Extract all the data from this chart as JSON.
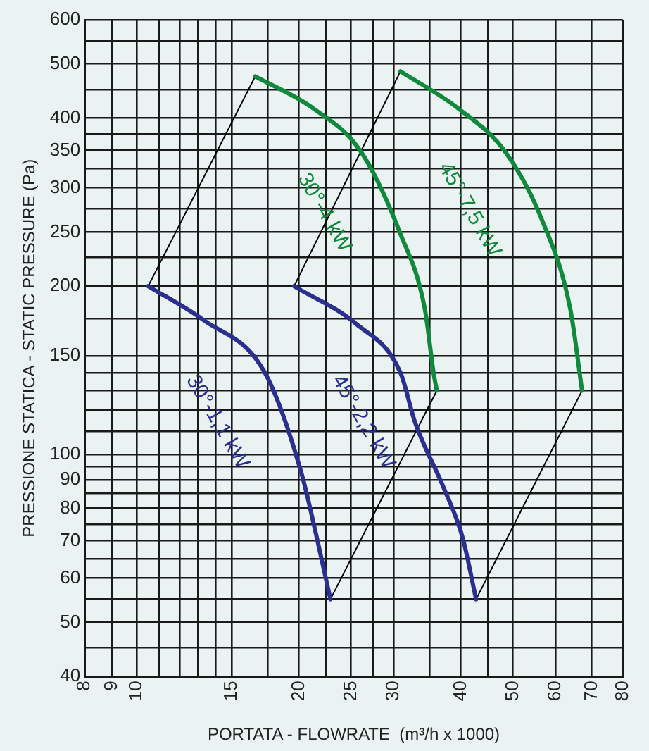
{
  "chart_data": {
    "type": "line",
    "xlabel": "PORTATA - FLOWRATE  (m³/h x 1000)",
    "ylabel": "PRESSIONE STATICA - STATIC PRESSURE (Pa)",
    "log": "xy",
    "grid": true,
    "legend": false,
    "marker": "none",
    "line_style": "solid",
    "xlim": [
      8,
      80
    ],
    "ylim": [
      40,
      600
    ],
    "xticks": [
      8,
      9,
      10,
      {
        "value": 11,
        "label": null
      },
      {
        "value": 12,
        "label": null
      },
      {
        "value": 13,
        "label": null
      },
      {
        "value": 14,
        "label": null
      },
      15,
      {
        "value": 17.5,
        "label": null
      },
      20,
      {
        "value": 22.5,
        "label": null
      },
      25,
      {
        "value": 27.5,
        "label": null
      },
      30,
      {
        "value": 35,
        "label": null
      },
      40,
      {
        "value": 45,
        "label": null
      },
      50,
      60,
      70,
      80
    ],
    "yticks": [
      40,
      {
        "value": 45,
        "label": null
      },
      50,
      {
        "value": 55,
        "label": null
      },
      60,
      {
        "value": 65,
        "label": null
      },
      70,
      {
        "value": 75,
        "label": null
      },
      80,
      {
        "value": 85,
        "label": null
      },
      90,
      {
        "value": 95,
        "label": null
      },
      100,
      {
        "value": 110,
        "label": null
      },
      {
        "value": 120,
        "label": null
      },
      {
        "value": 130,
        "label": null
      },
      {
        "value": 140,
        "label": null
      },
      150,
      {
        "value": 175,
        "label": null
      },
      200,
      {
        "value": 225,
        "label": null
      },
      250,
      {
        "value": 275,
        "label": null
      },
      300,
      {
        "value": 325,
        "label": null
      },
      350,
      {
        "value": 375,
        "label": null
      },
      400,
      {
        "value": 450,
        "label": null
      },
      500,
      {
        "value": 550,
        "label": null
      },
      600
    ],
    "series": [
      {
        "name": "30°-1,1 kW",
        "color": "#2b2f8f",
        "x": [
          10.5,
          13.3,
          17.3,
          20.2,
          21.6,
          22.9
        ],
        "values": [
          200,
          174,
          140,
          93,
          71,
          55
        ]
      },
      {
        "name": "45°-2,2 kW",
        "color": "#2b2f8f",
        "x": [
          19.6,
          25.6,
          30.9,
          32.9,
          37.2,
          40.3,
          42.7
        ],
        "values": [
          200,
          171,
          140,
          114,
          87,
          71,
          55
        ]
      },
      {
        "name": "30°-4 kW",
        "color": "#0f8a3c",
        "x": [
          16.6,
          21.3,
          26.1,
          30.9,
          34.3,
          35.6,
          36.1
        ],
        "values": [
          475,
          416,
          348,
          248,
          182,
          140,
          130
        ]
      },
      {
        "name": "45°-7,5 kW",
        "color": "#0f8a3c",
        "x": [
          30.9,
          39.6,
          48.6,
          56.5,
          63.9,
          67.2
        ],
        "values": [
          485,
          416,
          346,
          264,
          182,
          130
        ]
      },
      {
        "color": "#000000",
        "x": [
          10.5,
          16.6
        ],
        "values": [
          200,
          475
        ]
      },
      {
        "color": "#000000",
        "x": [
          19.6,
          30.9
        ],
        "values": [
          200,
          485
        ]
      },
      {
        "color": "#000000",
        "x": [
          22.9,
          36.1
        ],
        "values": [
          55,
          130
        ]
      },
      {
        "color": "#000000",
        "x": [
          42.7,
          67.2
        ],
        "values": [
          55,
          130
        ]
      }
    ]
  }
}
